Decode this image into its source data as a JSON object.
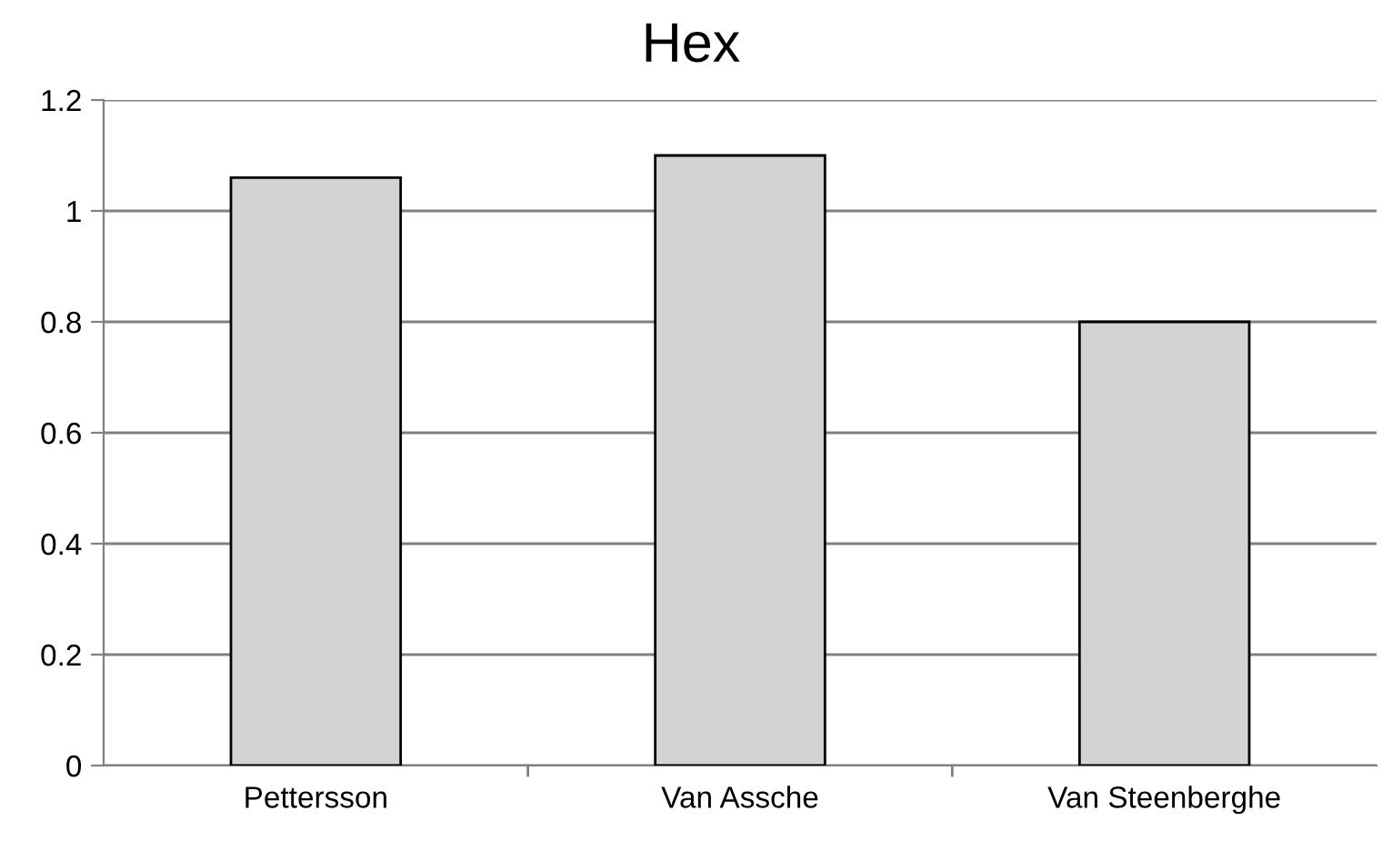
{
  "chart_data": {
    "type": "bar",
    "title": "Hex",
    "categories": [
      "Pettersson",
      "Van Assche",
      "Van Steenberghe"
    ],
    "values": [
      1.06,
      1.1,
      0.8
    ],
    "color": "#d3d3d3",
    "ylim": [
      0,
      1.2
    ],
    "yticks": [
      0,
      0.2,
      0.4,
      0.6,
      0.8,
      1,
      1.2
    ],
    "grid": "y",
    "legend": false
  }
}
